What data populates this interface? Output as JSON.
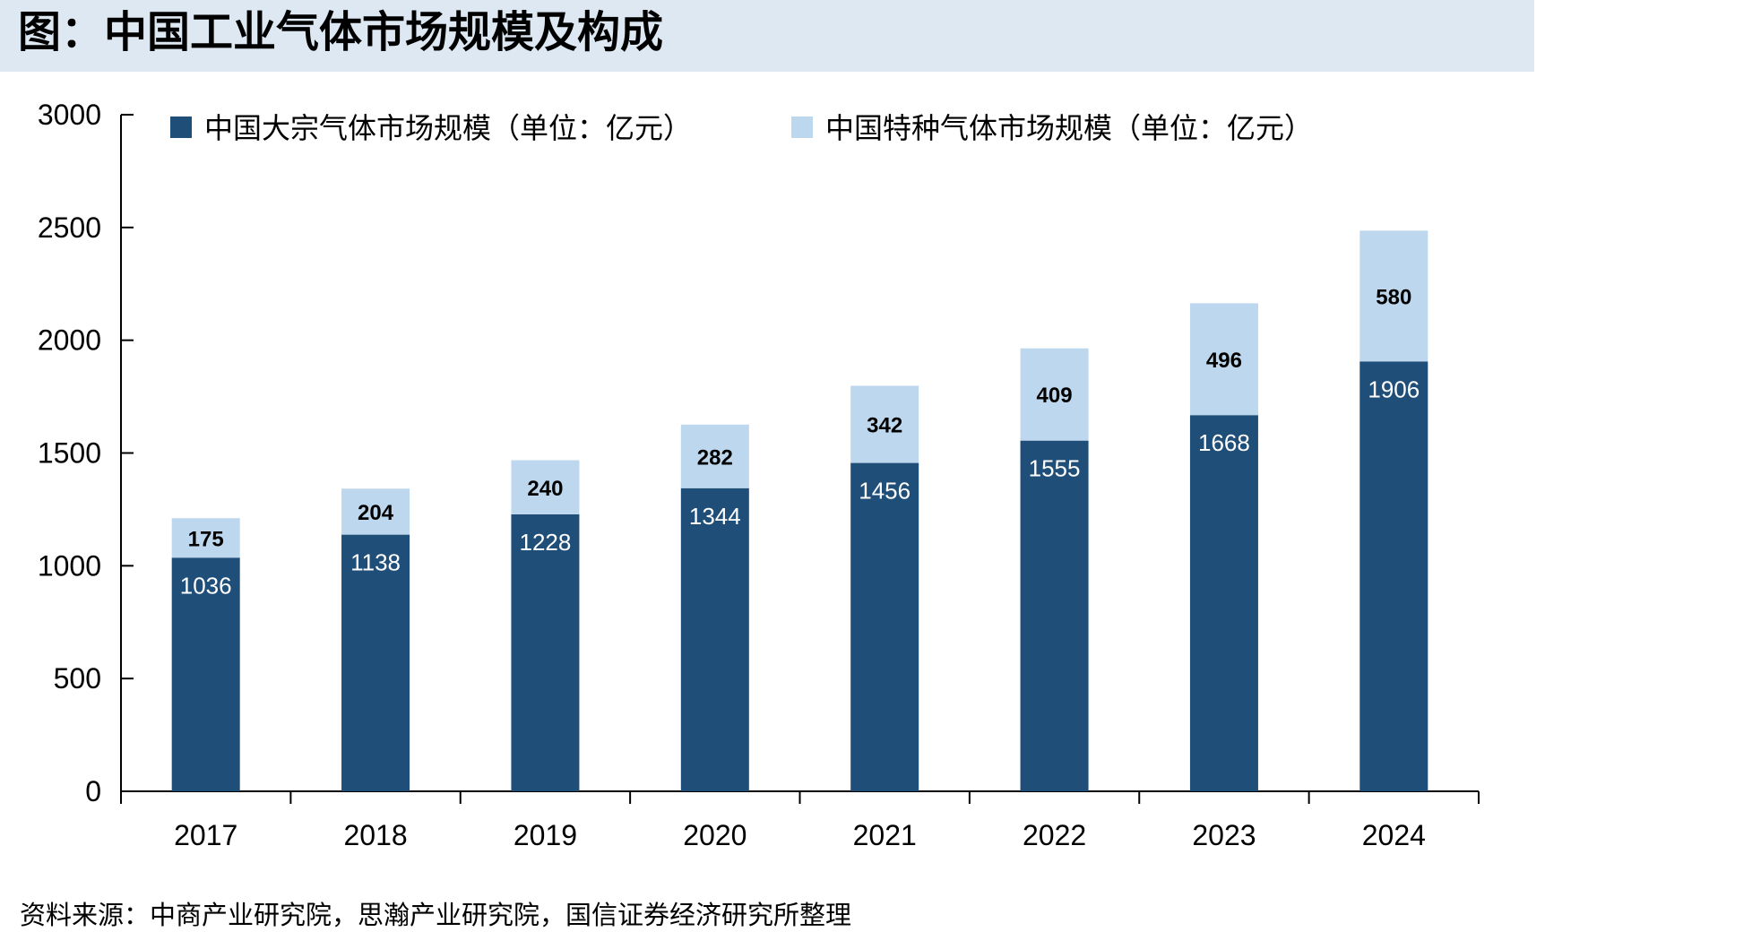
{
  "title": "图：中国工业气体市场规模及构成",
  "source": "资料来源：中商产业研究院，思瀚产业研究院，国信证券经济研究所整理",
  "colors": {
    "bulk": "#1f4e79",
    "special": "#bdd7ee",
    "title_band": "#dde8f3"
  },
  "chart_data": {
    "type": "bar",
    "stacked": true,
    "categories": [
      "2017",
      "2018",
      "2019",
      "2020",
      "2021",
      "2022",
      "2023",
      "2024"
    ],
    "series": [
      {
        "name": "中国大宗气体市场规模（单位：亿元）",
        "values": [
          1036,
          1138,
          1228,
          1344,
          1456,
          1555,
          1668,
          1906
        ]
      },
      {
        "name": "中国特种气体市场规模（单位：亿元）",
        "values": [
          175,
          204,
          240,
          282,
          342,
          409,
          496,
          580
        ]
      }
    ],
    "ylim": [
      0,
      3000
    ],
    "yticks": [
      0,
      500,
      1000,
      1500,
      2000,
      2500,
      3000
    ],
    "grid": false,
    "legend_position": "top"
  }
}
